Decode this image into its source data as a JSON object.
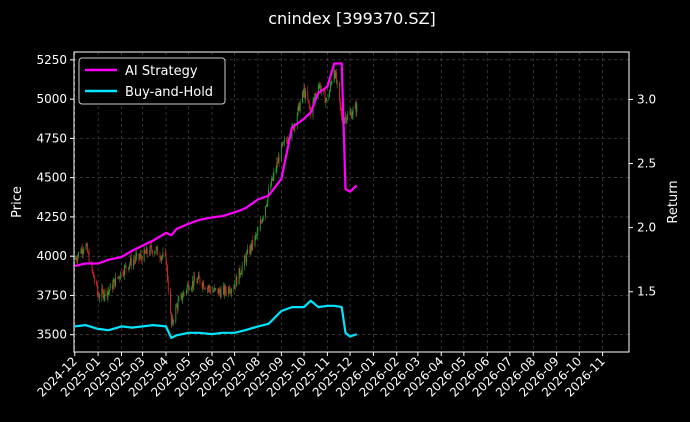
{
  "chart_data": {
    "type": "line",
    "title": "cnindex [399370.SZ]",
    "ylabel_left": "Price",
    "ylabel_right": "Return",
    "xlabel": "",
    "grid": true,
    "legend_placement": "top-left",
    "background": "#000000",
    "axis_color": "#ffffff",
    "grid_color": "#555555",
    "candle_up_color": "#2ca02c",
    "candle_down_color": "#d62728",
    "left_yticks": [
      3500,
      3750,
      4000,
      4250,
      4500,
      4750,
      5000,
      5250
    ],
    "right_yticks": [
      "1.5",
      "2.0",
      "2.5",
      "3.0"
    ],
    "right_ytick_values": [
      1.5,
      2.0,
      2.5,
      3.0
    ],
    "x_ticks": [
      "2024-12",
      "2025-01",
      "2025-02",
      "2025-03",
      "2025-04",
      "2025-05",
      "2025-06",
      "2025-07",
      "2025-08",
      "2025-09",
      "2025-10",
      "2025-11",
      "2025-12",
      "2026-01",
      "2026-02",
      "2026-03",
      "2026-04",
      "2026-05",
      "2026-06",
      "2026-07",
      "2026-08",
      "2026-09",
      "2026-10",
      "2026-11"
    ],
    "xlim": [
      "2024-11-30",
      "2026-12-06"
    ],
    "ylim_left": [
      3390,
      5300
    ],
    "ylim_right": [
      1.03,
      3.37
    ],
    "price_series": {
      "name": "cnindex [399370.SZ]",
      "x": [
        "2024-12-01",
        "2024-12-15",
        "2025-01-01",
        "2025-01-15",
        "2025-02-01",
        "2025-02-15",
        "2025-03-01",
        "2025-03-15",
        "2025-04-01",
        "2025-04-08",
        "2025-04-15",
        "2025-05-01",
        "2025-05-15",
        "2025-06-01",
        "2025-06-15",
        "2025-07-01",
        "2025-07-15",
        "2025-08-01",
        "2025-08-15",
        "2025-09-01",
        "2025-09-15",
        "2025-10-01",
        "2025-10-10",
        "2025-10-20",
        "2025-11-01",
        "2025-11-10",
        "2025-11-20",
        "2025-12-01",
        "2025-12-10"
      ],
      "close": [
        3980,
        4080,
        3750,
        3780,
        3900,
        3970,
        4000,
        4050,
        3980,
        3560,
        3680,
        3820,
        3850,
        3780,
        3770,
        3820,
        3980,
        4150,
        4400,
        4680,
        4800,
        5050,
        4920,
        5100,
        4980,
        5200,
        4880,
        4900,
        4950
      ]
    },
    "series": [
      {
        "name": "AI Strategy",
        "color": "#ff00ff",
        "x": [
          "2024-12-01",
          "2024-12-15",
          "2025-01-01",
          "2025-01-15",
          "2025-02-01",
          "2025-02-15",
          "2025-03-01",
          "2025-03-15",
          "2025-04-01",
          "2025-04-08",
          "2025-04-15",
          "2025-05-01",
          "2025-05-15",
          "2025-06-01",
          "2025-06-15",
          "2025-07-01",
          "2025-07-15",
          "2025-08-01",
          "2025-08-15",
          "2025-09-01",
          "2025-09-15",
          "2025-10-01",
          "2025-10-10",
          "2025-10-20",
          "2025-11-01",
          "2025-11-10",
          "2025-11-20",
          "2025-11-25",
          "2025-12-01",
          "2025-12-10"
        ],
        "values": [
          1.7,
          1.72,
          1.72,
          1.75,
          1.77,
          1.82,
          1.86,
          1.9,
          1.96,
          1.94,
          1.99,
          2.03,
          2.06,
          2.08,
          2.09,
          2.12,
          2.15,
          2.22,
          2.25,
          2.38,
          2.78,
          2.85,
          2.9,
          3.05,
          3.1,
          3.28,
          3.28,
          2.3,
          2.28,
          2.33
        ]
      },
      {
        "name": "Buy-and-Hold",
        "color": "#00e5ff",
        "x": [
          "2024-12-01",
          "2024-12-15",
          "2025-01-01",
          "2025-01-15",
          "2025-02-01",
          "2025-02-15",
          "2025-03-01",
          "2025-03-15",
          "2025-04-01",
          "2025-04-08",
          "2025-04-15",
          "2025-05-01",
          "2025-05-15",
          "2025-06-01",
          "2025-06-15",
          "2025-07-01",
          "2025-07-15",
          "2025-08-01",
          "2025-08-15",
          "2025-09-01",
          "2025-09-15",
          "2025-10-01",
          "2025-10-10",
          "2025-10-20",
          "2025-11-01",
          "2025-11-10",
          "2025-11-20",
          "2025-11-25",
          "2025-12-01",
          "2025-12-10"
        ],
        "values": [
          1.23,
          1.24,
          1.21,
          1.2,
          1.23,
          1.22,
          1.23,
          1.24,
          1.23,
          1.14,
          1.16,
          1.18,
          1.18,
          1.17,
          1.18,
          1.18,
          1.2,
          1.23,
          1.25,
          1.35,
          1.38,
          1.38,
          1.43,
          1.38,
          1.39,
          1.39,
          1.38,
          1.18,
          1.15,
          1.17
        ]
      }
    ]
  }
}
